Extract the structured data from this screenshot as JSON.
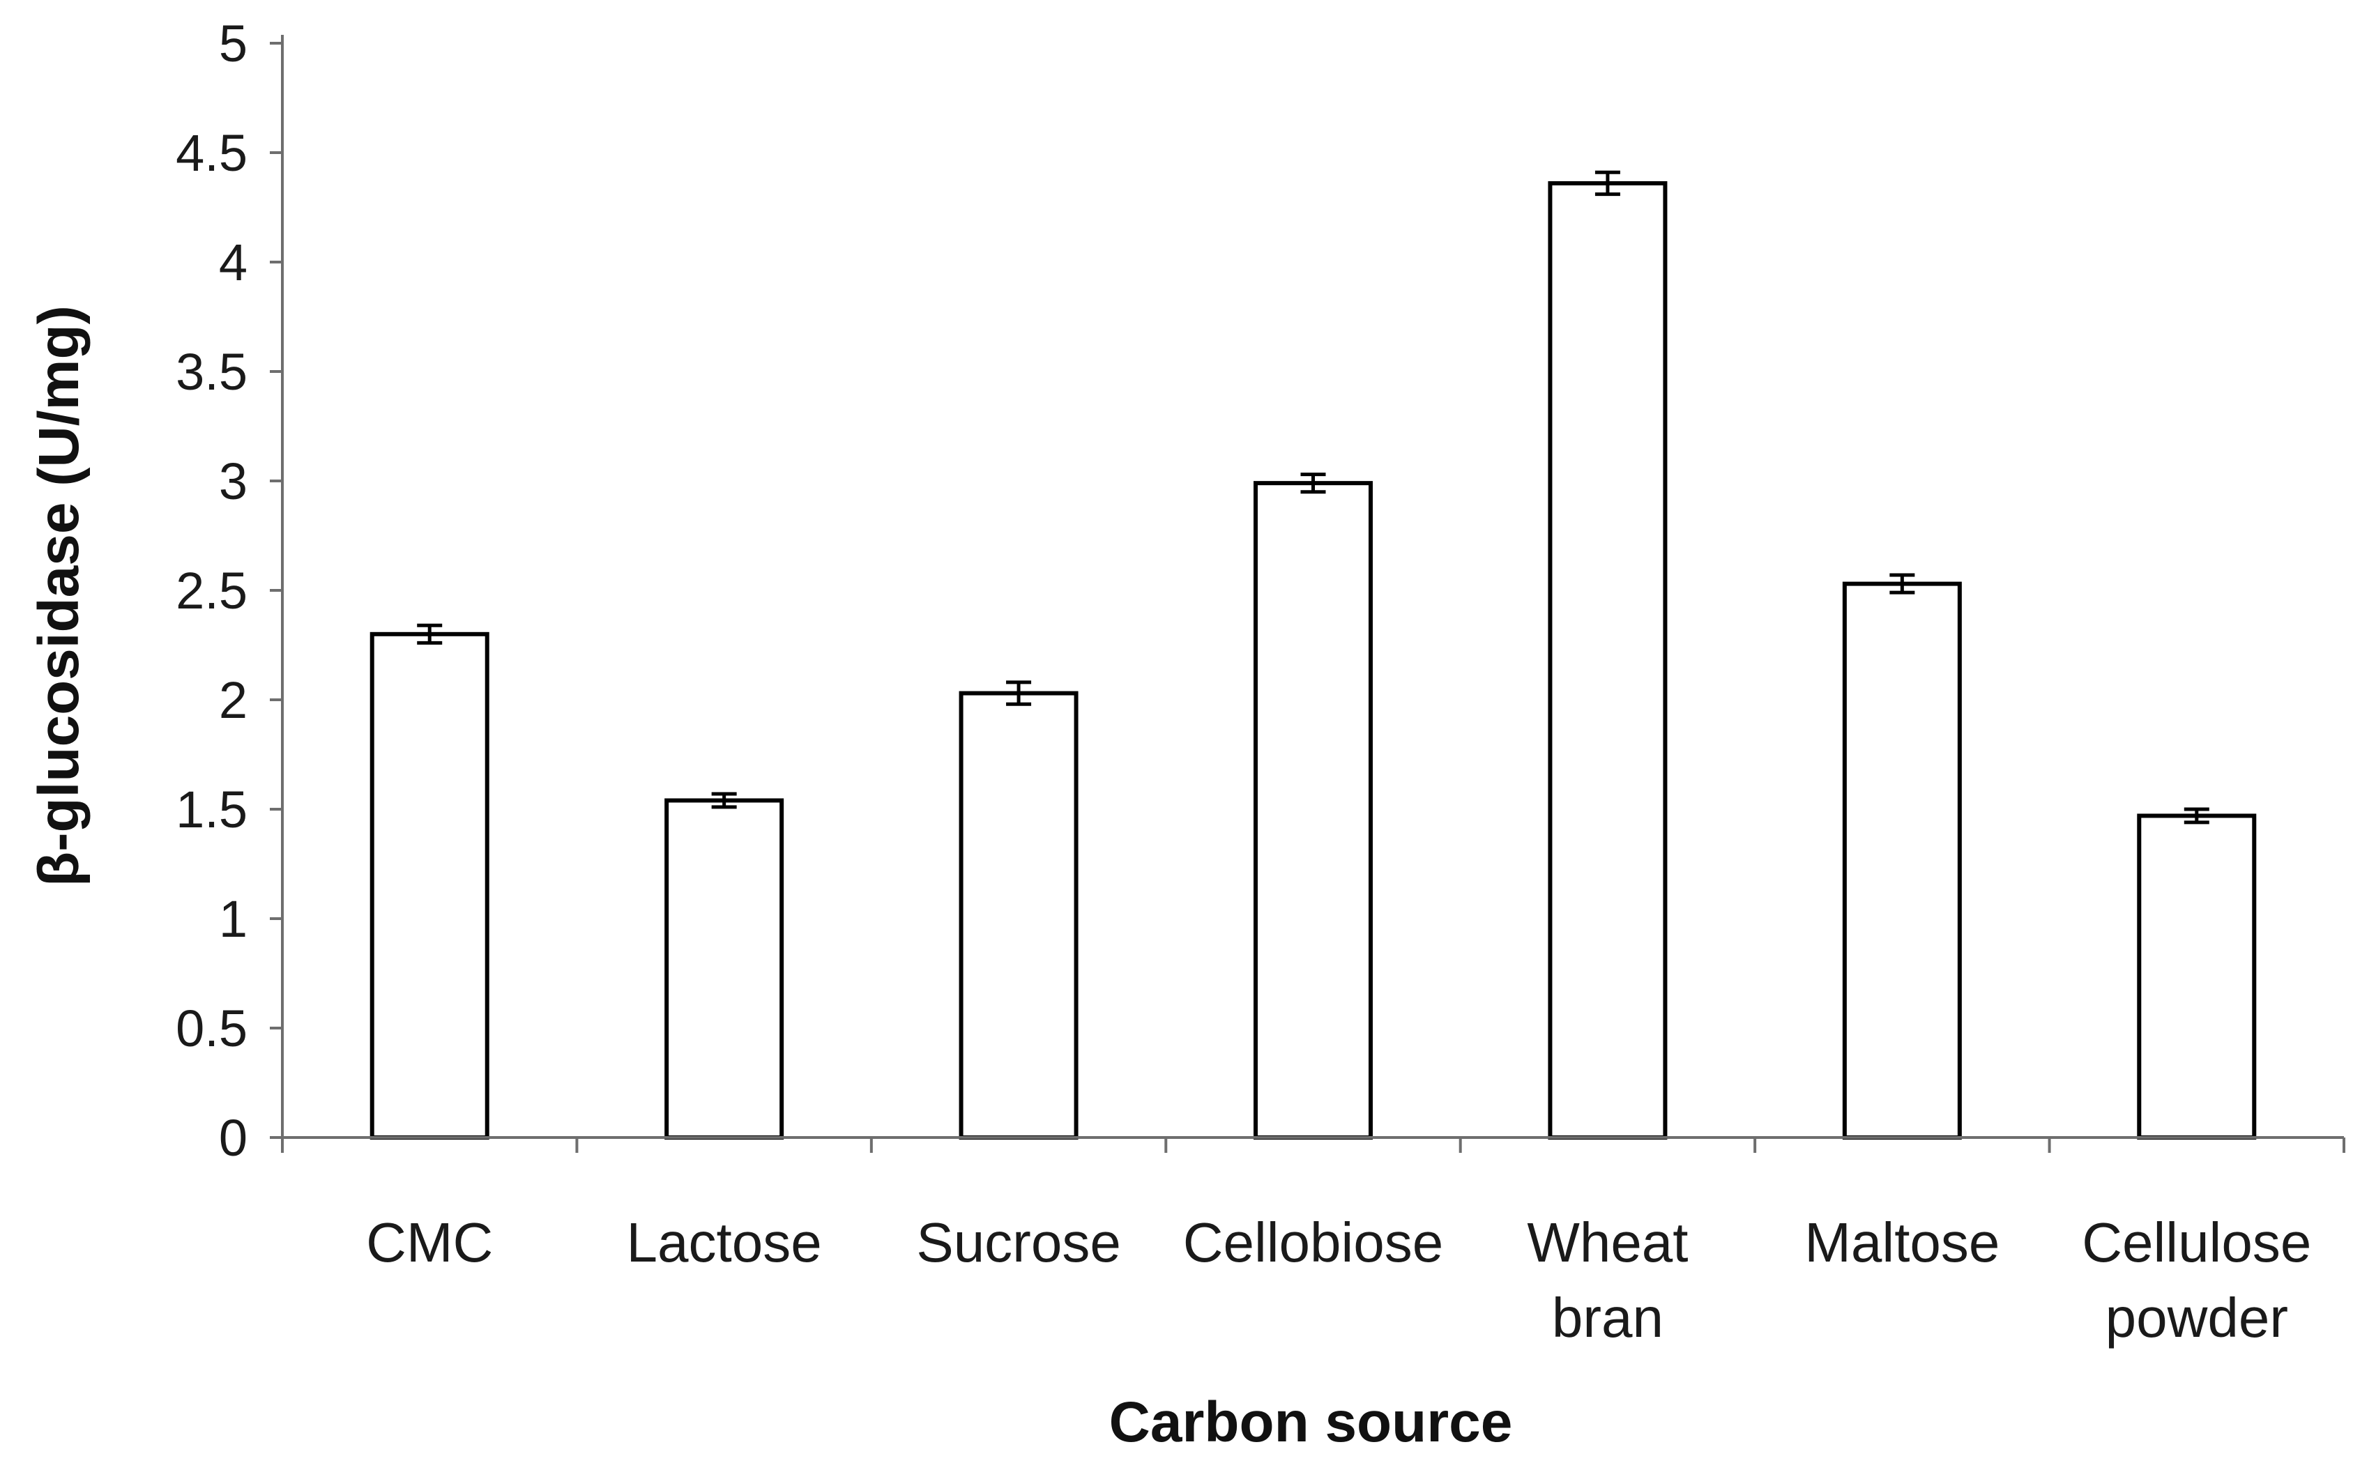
{
  "chart_data": {
    "type": "bar",
    "title": "",
    "xlabel": "Carbon source",
    "ylabel": "β-glucosidase (U/mg)",
    "ylim": [
      0,
      5
    ],
    "yticks": [
      "0",
      "0.5",
      "1",
      "1.5",
      "2",
      "2.5",
      "3",
      "3.5",
      "4",
      "4.5",
      "5"
    ],
    "categories": [
      [
        "CMC"
      ],
      [
        "Lactose"
      ],
      [
        "Sucrose"
      ],
      [
        "Cellobiose"
      ],
      [
        "Wheat",
        "bran"
      ],
      [
        "Maltose"
      ],
      [
        "Cellulose",
        "powder"
      ]
    ],
    "values": [
      2.3,
      1.54,
      2.03,
      2.99,
      4.36,
      2.53,
      1.47
    ],
    "errors": [
      0.04,
      0.03,
      0.05,
      0.04,
      0.05,
      0.04,
      0.03
    ],
    "bar_fill": "#ffffff",
    "bar_stroke": "#000000",
    "grid": false,
    "legend": "none"
  }
}
